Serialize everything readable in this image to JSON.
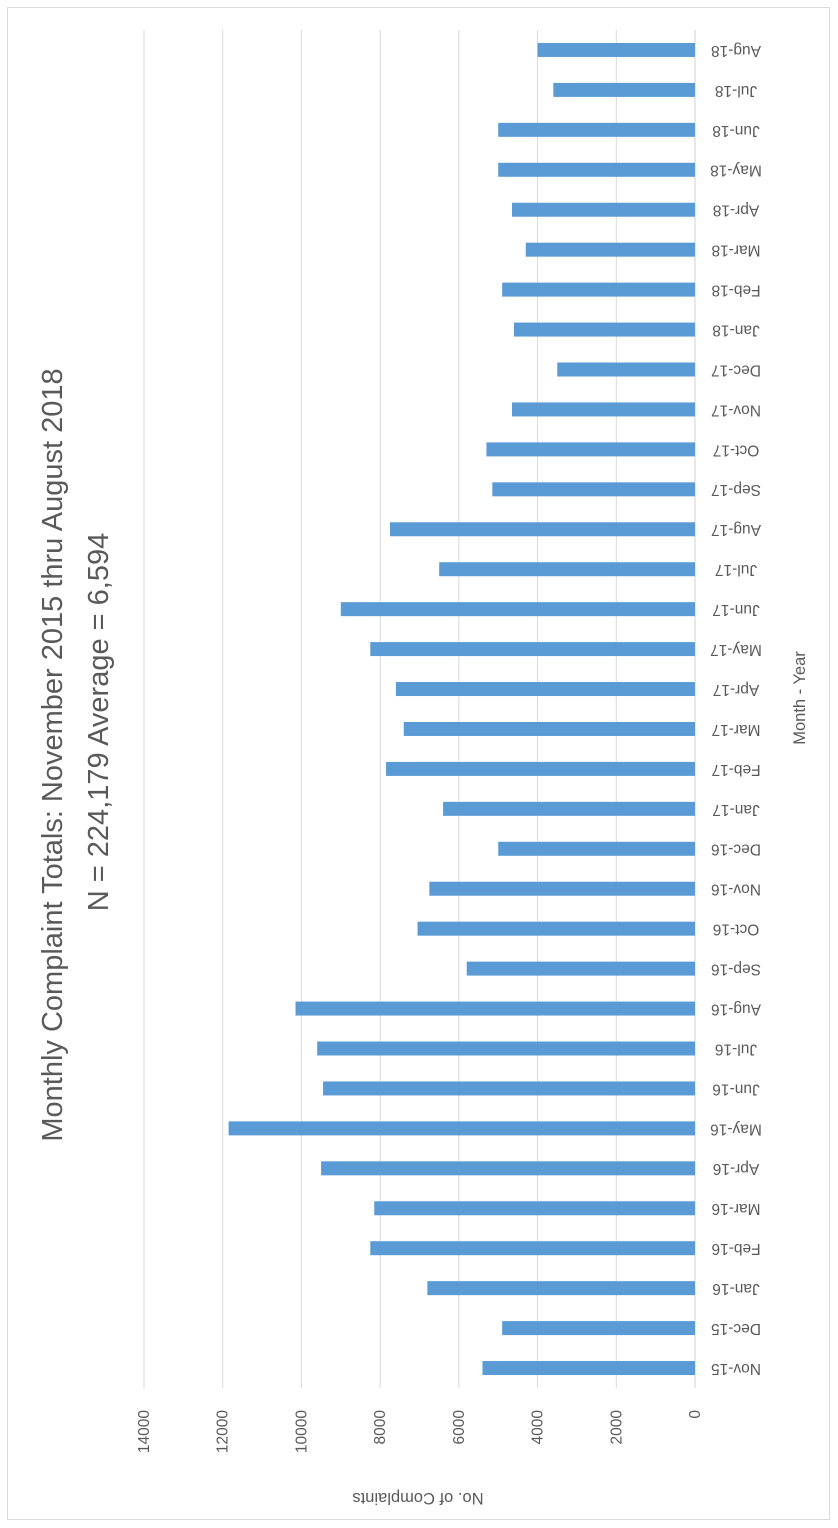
{
  "chart_data": {
    "type": "bar",
    "title": "Monthly Complaint Totals:  November 2015 thru August 2018",
    "subtitle": "N = 224,179    Average = 6,594",
    "xlabel": "Month - Year",
    "ylabel": "No. of Complaints",
    "ylim": [
      0,
      14000
    ],
    "yticks": [
      "0",
      "2000",
      "4000",
      "6000",
      "8000",
      "10000",
      "12000",
      "14000"
    ],
    "grid": true,
    "bar_color": "#5b9bd5",
    "categories": [
      "Nov-15",
      "Dec-15",
      "Jan-16",
      "Feb-16",
      "Mar-16",
      "Apr-16",
      "May-16",
      "Jun-16",
      "Jul-16",
      "Aug-16",
      "Sep-16",
      "Oct-16",
      "Nov-16",
      "Dec-16",
      "Jan-17",
      "Feb-17",
      "Mar-17",
      "Apr-17",
      "May-17",
      "Jun-17",
      "Jul-17",
      "Aug-17",
      "Sep-17",
      "Oct-17",
      "Nov-17",
      "Dec-17",
      "Jan-18",
      "Feb-18",
      "Mar-18",
      "Apr-18",
      "May-18",
      "Jun-18",
      "Jul-18",
      "Aug-18"
    ],
    "values": [
      5400,
      4900,
      6800,
      8250,
      8150,
      9500,
      11850,
      9450,
      9600,
      10150,
      5800,
      7050,
      6750,
      5000,
      6400,
      7850,
      7400,
      7600,
      8250,
      9000,
      6500,
      7750,
      5150,
      5300,
      4650,
      3500,
      4600,
      4900,
      4300,
      4650,
      5000,
      5000,
      3600,
      4000
    ]
  }
}
